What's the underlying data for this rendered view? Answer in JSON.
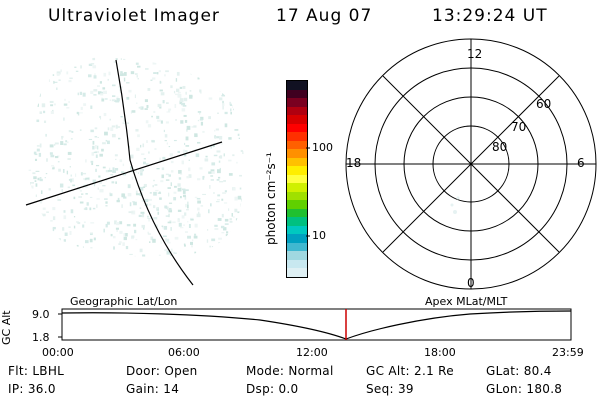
{
  "header": {
    "instrument": "Ultraviolet Imager",
    "date": "17 Aug 07",
    "time": "13:29:24 UT"
  },
  "colorbar": {
    "unit_label": "photon cm⁻²s⁻¹",
    "tick_labels": [
      "100",
      "10"
    ],
    "colors": [
      "#111122",
      "#400020",
      "#7a0020",
      "#b00010",
      "#d80000",
      "#ff0000",
      "#ff3000",
      "#ff6000",
      "#ff9000",
      "#ffc000",
      "#ffee00",
      "#ffff40",
      "#d0f000",
      "#a0e000",
      "#60d000",
      "#20c030",
      "#00c080",
      "#00c8c0",
      "#00a0c0",
      "#40b8d0",
      "#a0d8e0",
      "#c8e8f0",
      "#dff0f4"
    ]
  },
  "polar": {
    "labels": [
      "12",
      "18",
      "6",
      "0",
      "60",
      "70",
      "80"
    ]
  },
  "timeline": {
    "left_title": "Geographic Lat/Lon",
    "right_title": "Apex MLat/MLT",
    "axis_label": "GC Alt",
    "y_labels": [
      "9.0",
      "1.8"
    ],
    "x_labels": [
      "00:00",
      "06:00",
      "12:00",
      "18:00",
      "23:59"
    ],
    "marker_color": "#cc0000"
  },
  "info": {
    "row1": [
      {
        "label": "Flt:",
        "value": "LBHL"
      },
      {
        "label": "Door:",
        "value": "Open"
      },
      {
        "label": "Mode:",
        "value": "Normal"
      },
      {
        "label": "GC Alt:",
        "value": "2.1 Re"
      },
      {
        "label": "GLat:",
        "value": "80.4"
      }
    ],
    "row2": [
      {
        "label": "IP:",
        "value": "36.0"
      },
      {
        "label": "Gain:",
        "value": "14"
      },
      {
        "label": "Dsp:",
        "value": "0.0"
      },
      {
        "label": "Seq:",
        "value": "39"
      },
      {
        "label": "GLon:",
        "value": "180.8"
      }
    ]
  }
}
